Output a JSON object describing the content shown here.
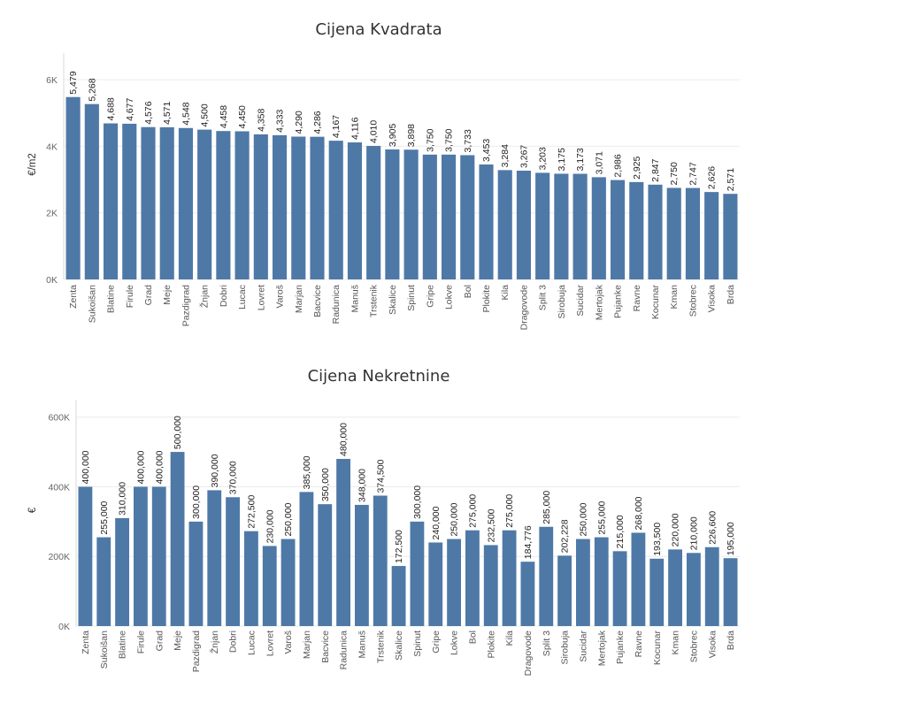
{
  "chart_data": [
    {
      "type": "bar",
      "title": "Cijena Kvadrata",
      "xlabel": "",
      "ylabel": "€/m2",
      "ylim": [
        0,
        6800
      ],
      "yticks": [
        0,
        2000,
        4000,
        6000
      ],
      "ytick_labels": [
        "0K",
        "2K",
        "4K",
        "6K"
      ],
      "grid": true,
      "color": "#4e79a7",
      "categories": [
        "Zenta",
        "Sukoišan",
        "Blatine",
        "Firule",
        "Grad",
        "Meje",
        "Pazdigrad",
        "Žnjan",
        "Dobri",
        "Lucac",
        "Lovret",
        "Varoš",
        "Marjan",
        "Bacvice",
        "Radunica",
        "Manuš",
        "Trstenik",
        "Skalice",
        "Spinut",
        "Gripe",
        "Lokve",
        "Bol",
        "Plokite",
        "Kila",
        "Dragovode",
        "Split 3",
        "Sirobuja",
        "Sucidar",
        "Mertojak",
        "Pujanke",
        "Ravne",
        "Kocunar",
        "Kman",
        "Stobrec",
        "Visoka",
        "Brda"
      ],
      "values": [
        5479,
        5268,
        4688,
        4677,
        4576,
        4571,
        4548,
        4500,
        4458,
        4450,
        4358,
        4333,
        4290,
        4286,
        4167,
        4116,
        4010,
        3905,
        3898,
        3750,
        3750,
        3733,
        3453,
        3284,
        3267,
        3203,
        3175,
        3173,
        3071,
        2986,
        2925,
        2847,
        2750,
        2747,
        2626,
        2571
      ],
      "value_labels": [
        "5,479",
        "5,268",
        "4,688",
        "4,677",
        "4,576",
        "4,571",
        "4,548",
        "4,500",
        "4,458",
        "4,450",
        "4,358",
        "4,333",
        "4,290",
        "4,286",
        "4,167",
        "4,116",
        "4,010",
        "3,905",
        "3,898",
        "3,750",
        "3,750",
        "3,733",
        "3,453",
        "3,284",
        "3,267",
        "3,203",
        "3,175",
        "3,173",
        "3,071",
        "2,986",
        "2,925",
        "2,847",
        "2,750",
        "2,747",
        "2,626",
        "2,571"
      ]
    },
    {
      "type": "bar",
      "title": "Cijena Nekretnine",
      "xlabel": "",
      "ylabel": "€",
      "ylim": [
        0,
        650000
      ],
      "yticks": [
        0,
        200000,
        400000,
        600000
      ],
      "ytick_labels": [
        "0K",
        "200K",
        "400K",
        "600K"
      ],
      "grid": true,
      "color": "#4e79a7",
      "categories": [
        "Zenta",
        "Sukoišan",
        "Blatine",
        "Firule",
        "Grad",
        "Meje",
        "Pazdigrad",
        "Žnjan",
        "Dobri",
        "Lucac",
        "Lovret",
        "Varoš",
        "Marjan",
        "Bacvice",
        "Radunica",
        "Manuš",
        "Trstenik",
        "Skalice",
        "Spinut",
        "Gripe",
        "Lokve",
        "Bol",
        "Plokite",
        "Kila",
        "Dragovode",
        "Split 3",
        "Sirobuja",
        "Sucidar",
        "Mertojak",
        "Pujanke",
        "Ravne",
        "Kocunar",
        "Kman",
        "Stobrec",
        "Visoka",
        "Brda"
      ],
      "values": [
        400000,
        255000,
        310000,
        400000,
        400000,
        500000,
        300000,
        390000,
        370000,
        272500,
        230000,
        250000,
        385000,
        350000,
        480000,
        348000,
        374500,
        172500,
        300000,
        240000,
        250000,
        275000,
        232500,
        275000,
        184776,
        285000,
        202228,
        250000,
        255000,
        215000,
        268000,
        193500,
        220000,
        210000,
        226600,
        195000
      ],
      "value_labels": [
        "400,000",
        "255,000",
        "310,000",
        "400,000",
        "400,000",
        "500,000",
        "300,000",
        "390,000",
        "370,000",
        "272,500",
        "230,000",
        "250,000",
        "385,000",
        "350,000",
        "480,000",
        "348,000",
        "374,500",
        "172,500",
        "300,000",
        "240,000",
        "250,000",
        "275,000",
        "232,500",
        "275,000",
        "184,776",
        "285,000",
        "202,228",
        "250,000",
        "255,000",
        "215,000",
        "268,000",
        "193,500",
        "220,000",
        "210,000",
        "226,600",
        "195,000"
      ]
    }
  ]
}
